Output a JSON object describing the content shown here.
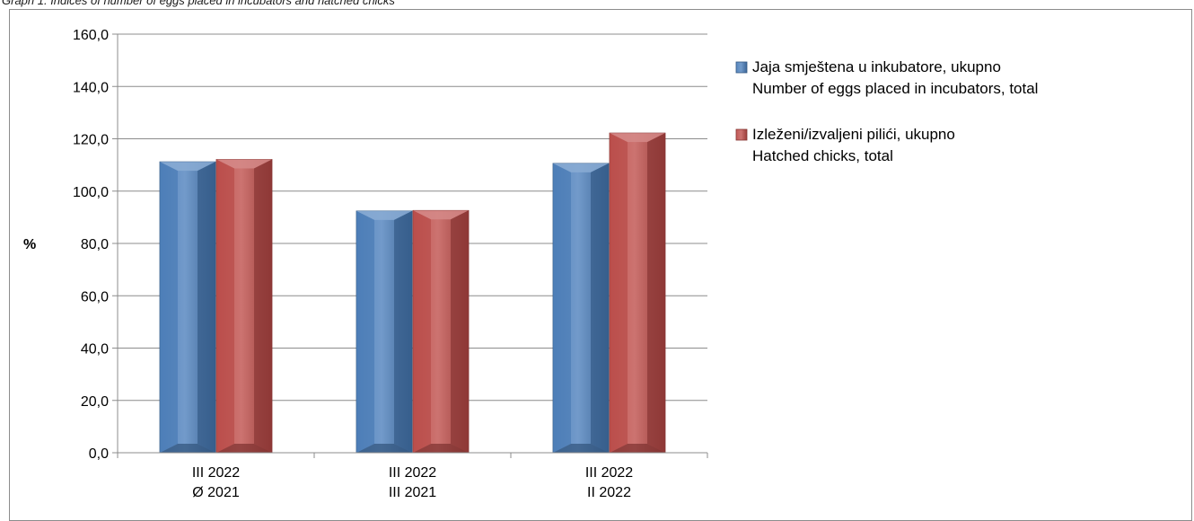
{
  "caption": "Graph 1. Indices of number of eggs placed in incubators and hatched chicks",
  "chart_data": {
    "type": "bar",
    "categories": [
      [
        "III 2022",
        "Ø 2021"
      ],
      [
        "III 2022",
        "III 2021"
      ],
      [
        "III 2022",
        "II 2022"
      ]
    ],
    "series": [
      {
        "name": [
          "Jaja smještena u inkubatore, ukupno",
          "Number  of eggs placed in incubators, total"
        ],
        "color": "#4a7ebb",
        "values": [
          111.2,
          92.4,
          110.6
        ]
      },
      {
        "name": [
          "Izleženi/izvaljeni pilići, ukupno",
          "Hatched chicks, total"
        ],
        "color": "#be4b48",
        "values": [
          112.1,
          92.6,
          122.2
        ]
      }
    ],
    "ylabel": "%",
    "ylim": [
      0,
      160
    ],
    "yticks": [
      "0,0",
      "20,0",
      "40,0",
      "60,0",
      "80,0",
      "100,0",
      "120,0",
      "140,0",
      "160,0"
    ],
    "grid": true,
    "legend": "right"
  }
}
